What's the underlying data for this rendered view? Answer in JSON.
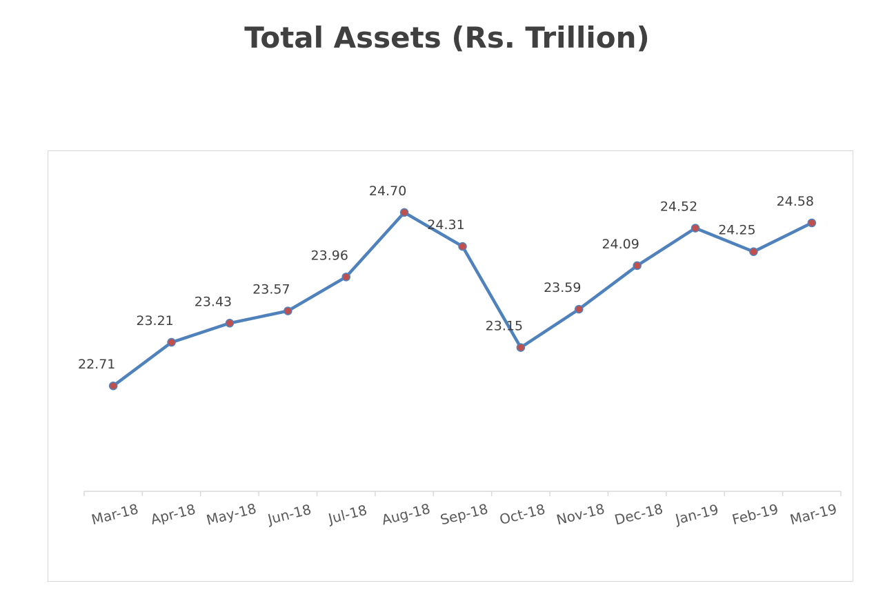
{
  "chart_data": {
    "type": "line",
    "title": "Total Assets (Rs. Trillion)",
    "categories": [
      "Mar-18",
      "Apr-18",
      "May-18",
      "Jun-18",
      "Jul-18",
      "Aug-18",
      "Sep-18",
      "Oct-18",
      "Nov-18",
      "Dec-18",
      "Jan-19",
      "Feb-19",
      "Mar-19"
    ],
    "series": [
      {
        "values": [
          22.71,
          23.21,
          23.43,
          23.57,
          23.96,
          24.7,
          24.31,
          23.15,
          23.59,
          24.09,
          24.52,
          24.25,
          24.58
        ],
        "labels": [
          "22.71",
          "23.21",
          "23.43",
          "23.57",
          "23.96",
          "24.70",
          "24.31",
          "23.15",
          "23.59",
          "24.09",
          "24.52",
          "24.25",
          "24.58"
        ],
        "line_color": "#4f81bd",
        "marker_color": "#c0504d"
      }
    ],
    "xlabel": "",
    "ylabel": "",
    "ylim": [
      21.5,
      25.0
    ],
    "grid": false,
    "legend": "none",
    "data_labels": "above",
    "y_axis_visible": false
  }
}
